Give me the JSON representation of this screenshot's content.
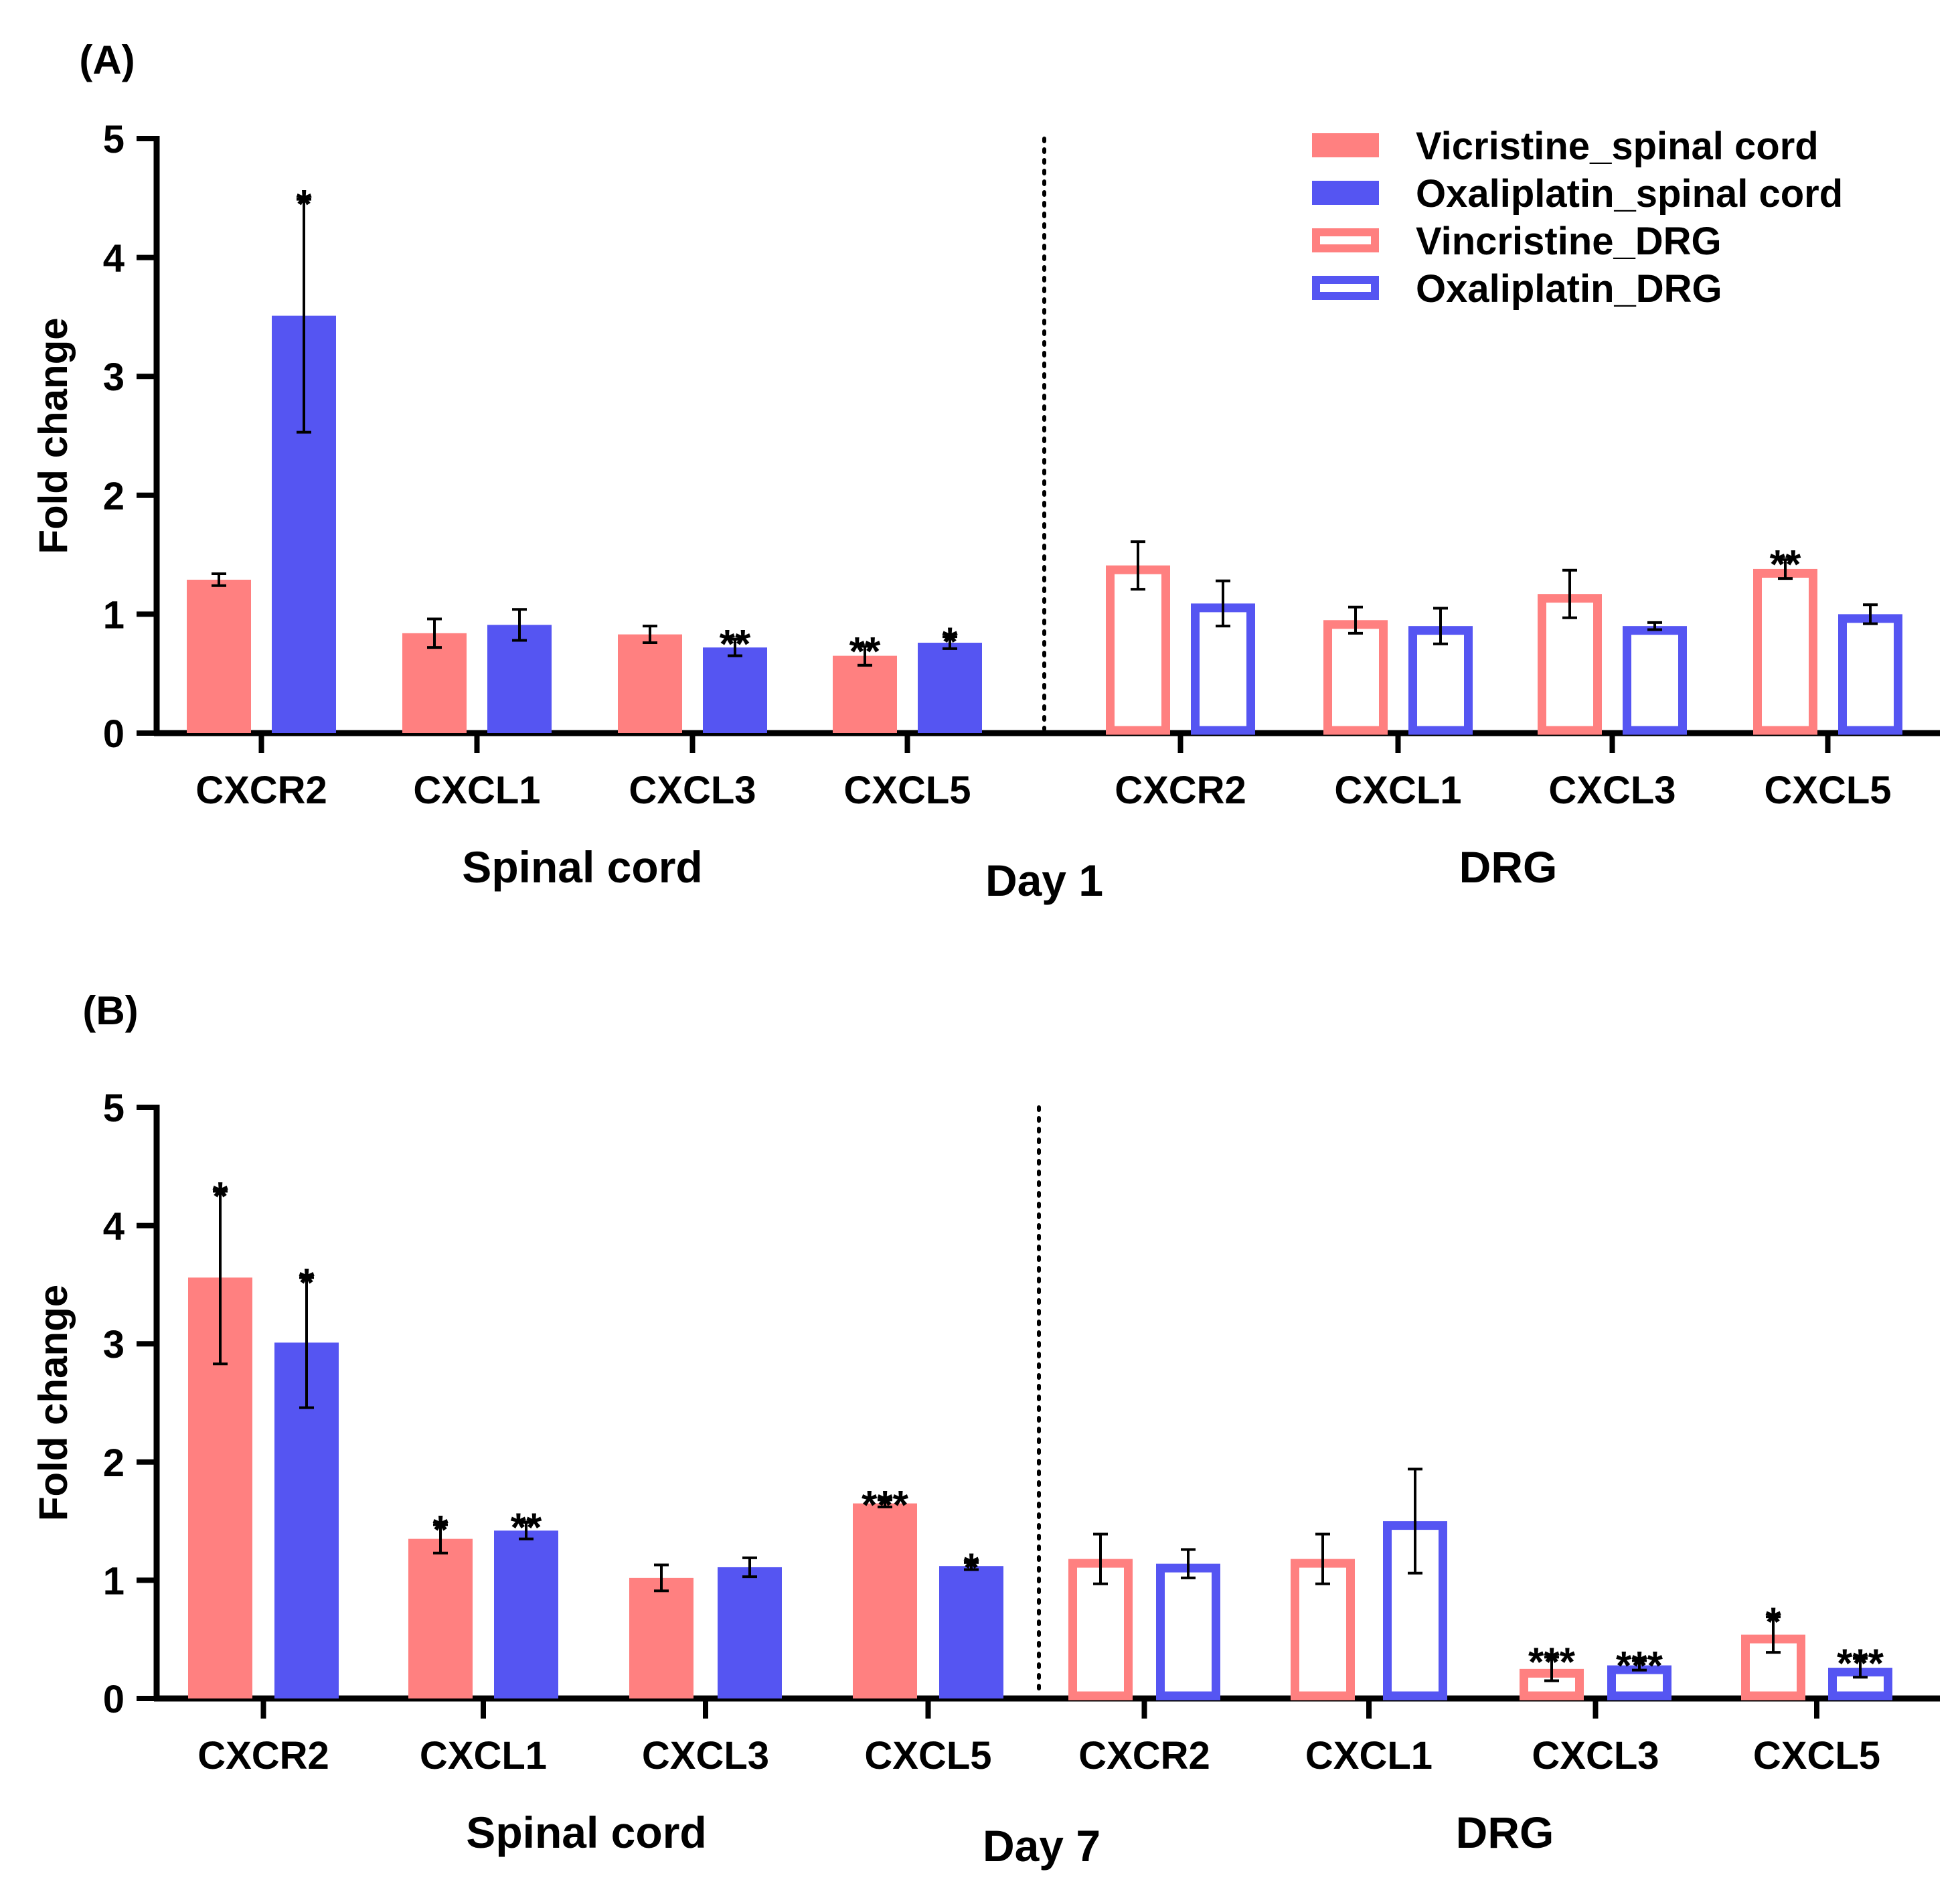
{
  "legend": [
    {
      "label": "Vicristine_spinal cord",
      "style": "filled",
      "color": "#FF8080"
    },
    {
      "label": "Oxaliplatin_spinal cord",
      "style": "filled",
      "color": "#5555F2"
    },
    {
      "label": "Vincristine_DRG",
      "style": "outline",
      "color": "#FF8080"
    },
    {
      "label": "Oxaliplatin_DRG",
      "style": "outline",
      "color": "#5555F2"
    }
  ],
  "colors": {
    "vincristine": "#FF8080",
    "oxaliplatin": "#5555F2",
    "axis": "#000000"
  },
  "chart_data": [
    {
      "type": "bar",
      "panel_label": "(A)",
      "title": "Day 1",
      "ylabel": "Fold change",
      "ylim": [
        0,
        5
      ],
      "yticks": [
        0,
        1,
        2,
        3,
        4,
        5
      ],
      "group_labels": [
        "Spinal cord",
        "DRG"
      ],
      "categories": [
        "CXCR2",
        "CXCL1",
        "CXCL3",
        "CXCL5",
        "CXCR2",
        "CXCL1",
        "CXCL3",
        "CXCL5"
      ],
      "series": [
        {
          "name": "Vincristine",
          "values": [
            1.29,
            0.84,
            0.83,
            0.65,
            1.41,
            0.95,
            1.17,
            1.38
          ],
          "errors": [
            0.05,
            0.12,
            0.07,
            0.08,
            0.2,
            0.11,
            0.2,
            0.08
          ],
          "significance": [
            "",
            "",
            "",
            "**",
            "",
            "",
            "",
            "**"
          ]
        },
        {
          "name": "Oxaliplatin",
          "values": [
            3.51,
            0.91,
            0.72,
            0.76,
            1.09,
            0.9,
            0.9,
            1.0
          ],
          "errors": [
            0.98,
            0.13,
            0.07,
            0.05,
            0.19,
            0.15,
            0.03,
            0.08
          ],
          "significance": [
            "*",
            "",
            "**",
            "*",
            "",
            "",
            "",
            ""
          ]
        }
      ]
    },
    {
      "type": "bar",
      "panel_label": "(B)",
      "title": "Day 7",
      "ylabel": "Fold change",
      "ylim": [
        0,
        5
      ],
      "yticks": [
        0,
        1,
        2,
        3,
        4,
        5
      ],
      "group_labels": [
        "Spinal cord",
        "DRG"
      ],
      "categories": [
        "CXCR2",
        "CXCL1",
        "CXCL3",
        "CXCL5",
        "CXCR2",
        "CXCL1",
        "CXCL3",
        "CXCL5"
      ],
      "series": [
        {
          "name": "Vincristine",
          "values": [
            3.56,
            1.35,
            1.02,
            1.65,
            1.18,
            1.18,
            0.25,
            0.54
          ],
          "errors": [
            0.73,
            0.12,
            0.11,
            0.03,
            0.21,
            0.21,
            0.1,
            0.15
          ],
          "significance": [
            "*",
            "*",
            "",
            "***",
            "",
            "",
            "***",
            "*"
          ]
        },
        {
          "name": "Oxaliplatin",
          "values": [
            3.01,
            1.42,
            1.11,
            1.12,
            1.14,
            1.5,
            0.28,
            0.26
          ],
          "errors": [
            0.55,
            0.07,
            0.08,
            0.03,
            0.12,
            0.44,
            0.04,
            0.08
          ],
          "significance": [
            "*",
            "**",
            "",
            "*",
            "",
            "",
            "***",
            "***"
          ]
        }
      ]
    }
  ]
}
